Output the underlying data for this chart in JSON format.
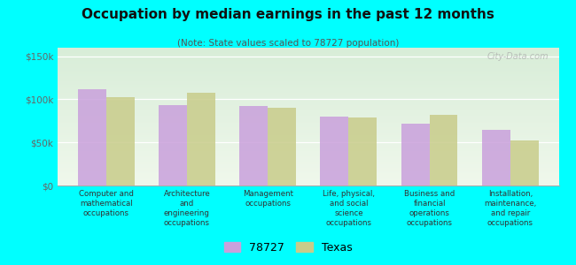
{
  "title": "Occupation by median earnings in the past 12 months",
  "subtitle": "(Note: State values scaled to 78727 population)",
  "background_color": "#00FFFF",
  "categories": [
    "Computer and\nmathematical\noccupations",
    "Architecture\nand\nengineering\noccupations",
    "Management\noccupations",
    "Life, physical,\nand social\nscience\noccupations",
    "Business and\nfinancial\noperations\noccupations",
    "Installation,\nmaintenance,\nand repair\noccupations"
  ],
  "values_78727": [
    112000,
    93000,
    92000,
    80000,
    72000,
    65000
  ],
  "values_texas": [
    103000,
    108000,
    90000,
    79000,
    82000,
    52000
  ],
  "color_78727": "#c9a0dc",
  "color_texas": "#c8cc8a",
  "bar_width": 0.35,
  "ylim": [
    0,
    160000
  ],
  "yticks": [
    0,
    50000,
    100000,
    150000
  ],
  "ytick_labels": [
    "$0",
    "$50k",
    "$100k",
    "$150k"
  ],
  "legend_labels": [
    "78727",
    "Texas"
  ],
  "watermark": "City-Data.com",
  "grad_top": "#d8edd8",
  "grad_bottom": "#f0f8ec"
}
